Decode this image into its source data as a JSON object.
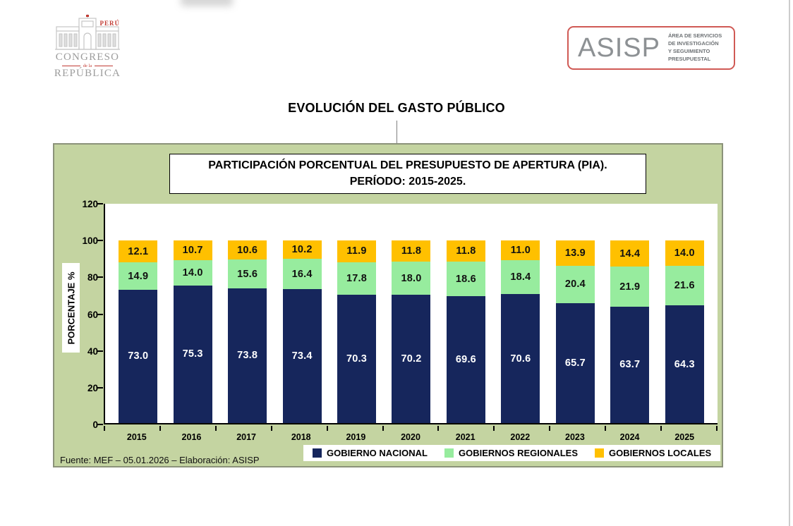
{
  "header": {
    "main_title": "EVOLUCIÓN DEL GASTO PÚBLICO"
  },
  "logos": {
    "congreso": {
      "country": "PERÚ",
      "name_line1": "CONGRESO",
      "name_line2": "de la",
      "name_line3": "REPÚBLICA"
    },
    "asisp": {
      "acronym": "ASISP",
      "lines": [
        "ÁREA DE SERVICIOS",
        "DE INVESTIGACIÓN",
        "Y SEGUIMIENTO",
        "PRESUPUESTAL"
      ]
    }
  },
  "chart_data": {
    "type": "bar",
    "stacked": true,
    "title_line1": "PARTICIPACIÓN PORCENTUAL DEL PRESUPUESTO DE APERTURA (PIA).",
    "title_line2": "PERÍODO: 2015-2025.",
    "ylabel": "PORCENTAJE %",
    "ylim": [
      0,
      120
    ],
    "yticks": [
      0,
      20,
      40,
      60,
      80,
      100,
      120
    ],
    "grid": false,
    "legend_position": "bottom",
    "categories": [
      "2015",
      "2016",
      "2017",
      "2018",
      "2019",
      "2020",
      "2021",
      "2022",
      "2023",
      "2024",
      "2025"
    ],
    "series": [
      {
        "name": "GOBIERNO NACIONAL",
        "color": "#16265C",
        "label_color": "#FFFFFF",
        "values": [
          73.0,
          75.3,
          73.8,
          73.4,
          70.3,
          70.2,
          69.6,
          70.6,
          65.7,
          63.7,
          64.3
        ]
      },
      {
        "name": "GOBIERNOS REGIONALES",
        "color": "#97EC9E",
        "label_color": "#111111",
        "values": [
          14.9,
          14.0,
          15.6,
          16.4,
          17.8,
          18.0,
          18.6,
          18.4,
          20.4,
          21.9,
          21.6
        ]
      },
      {
        "name": "GOBIERNOS LOCALES",
        "color": "#FFC000",
        "label_color": "#111111",
        "values": [
          12.1,
          10.7,
          10.6,
          10.2,
          11.9,
          11.8,
          11.8,
          11.0,
          13.9,
          14.4,
          14.0
        ]
      }
    ],
    "source_note": "Fuente:  MEF  – 05.01.2026 – Elaboración: ASISP"
  },
  "colors": {
    "panel_bg": "#C4D4A1",
    "panel_border": "#8B927A",
    "navy": "#16265C",
    "green": "#97EC9E",
    "orange": "#FFC000",
    "asisp_border": "#D05A55",
    "logo_gray": "#9C9C9C",
    "logo_red": "#C23B33"
  }
}
